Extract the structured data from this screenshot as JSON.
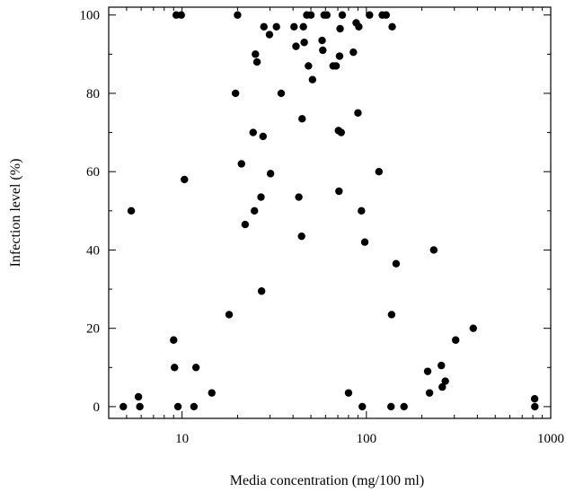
{
  "chart_data": {
    "type": "scatter",
    "title": "",
    "xlabel": "Media concentration (mg/100 ml)",
    "ylabel": "Infection level (%)",
    "x_scale": "log",
    "xlim": [
      4,
      1000
    ],
    "ylim": [
      -3,
      102
    ],
    "x_ticks": [
      10,
      100,
      1000
    ],
    "x_tick_labels": [
      "10",
      "100",
      "1000"
    ],
    "y_ticks": [
      0,
      20,
      40,
      60,
      80,
      100
    ],
    "y_tick_labels": [
      "0",
      "20",
      "40",
      "60",
      "80",
      "100"
    ],
    "grid": false,
    "legend": "none",
    "marker_color": "#000000",
    "series": [
      {
        "points": [
          [
            4.8,
            0
          ],
          [
            5.3,
            50
          ],
          [
            5.8,
            2.5
          ],
          [
            5.9,
            0
          ],
          [
            9.0,
            17
          ],
          [
            9.1,
            10
          ],
          [
            9.3,
            100
          ],
          [
            9.5,
            0
          ],
          [
            9.9,
            100
          ],
          [
            10.3,
            58
          ],
          [
            11.6,
            0
          ],
          [
            11.9,
            10
          ],
          [
            14.5,
            3.5
          ],
          [
            18.0,
            23.5
          ],
          [
            19.5,
            80
          ],
          [
            20.0,
            100
          ],
          [
            21.0,
            62
          ],
          [
            22.0,
            46.5
          ],
          [
            24.3,
            70
          ],
          [
            24.7,
            50
          ],
          [
            25.0,
            90
          ],
          [
            25.5,
            88
          ],
          [
            26.8,
            53.5
          ],
          [
            27.0,
            29.5
          ],
          [
            27.5,
            69
          ],
          [
            27.8,
            97
          ],
          [
            29.8,
            95
          ],
          [
            30.2,
            59.5
          ],
          [
            32.5,
            97
          ],
          [
            34.5,
            80
          ],
          [
            40.5,
            97
          ],
          [
            41.5,
            92
          ],
          [
            43.0,
            53.5
          ],
          [
            44.5,
            43.5
          ],
          [
            44.8,
            73.5
          ],
          [
            45.5,
            97
          ],
          [
            46.0,
            93
          ],
          [
            47.5,
            100
          ],
          [
            48.5,
            87
          ],
          [
            50.0,
            100
          ],
          [
            51.0,
            83.5
          ],
          [
            57.5,
            93.5
          ],
          [
            58.0,
            91
          ],
          [
            59.0,
            100
          ],
          [
            61.0,
            100
          ],
          [
            66.0,
            87
          ],
          [
            68.5,
            87
          ],
          [
            70.5,
            70.5
          ],
          [
            71.0,
            55
          ],
          [
            71.5,
            89.5
          ],
          [
            72.0,
            96.5
          ],
          [
            73.0,
            70
          ],
          [
            74.0,
            100
          ],
          [
            80.0,
            3.5
          ],
          [
            85.0,
            90.5
          ],
          [
            88.0,
            98
          ],
          [
            90.0,
            75
          ],
          [
            91.0,
            97
          ],
          [
            94.0,
            50
          ],
          [
            95.0,
            0
          ],
          [
            98.0,
            42
          ],
          [
            104.0,
            100
          ],
          [
            117.0,
            60
          ],
          [
            122.0,
            100
          ],
          [
            128.0,
            100
          ],
          [
            136.0,
            0
          ],
          [
            137.0,
            23.5
          ],
          [
            138.0,
            97
          ],
          [
            145.0,
            36.5
          ],
          [
            160.0,
            0
          ],
          [
            215.0,
            9
          ],
          [
            220.0,
            3.5
          ],
          [
            232.0,
            40
          ],
          [
            255.0,
            10.5
          ],
          [
            258.0,
            5
          ],
          [
            268.0,
            6.5
          ],
          [
            305.0,
            17
          ],
          [
            380.0,
            20
          ],
          [
            818.0,
            2
          ],
          [
            820.0,
            0
          ]
        ]
      }
    ]
  }
}
